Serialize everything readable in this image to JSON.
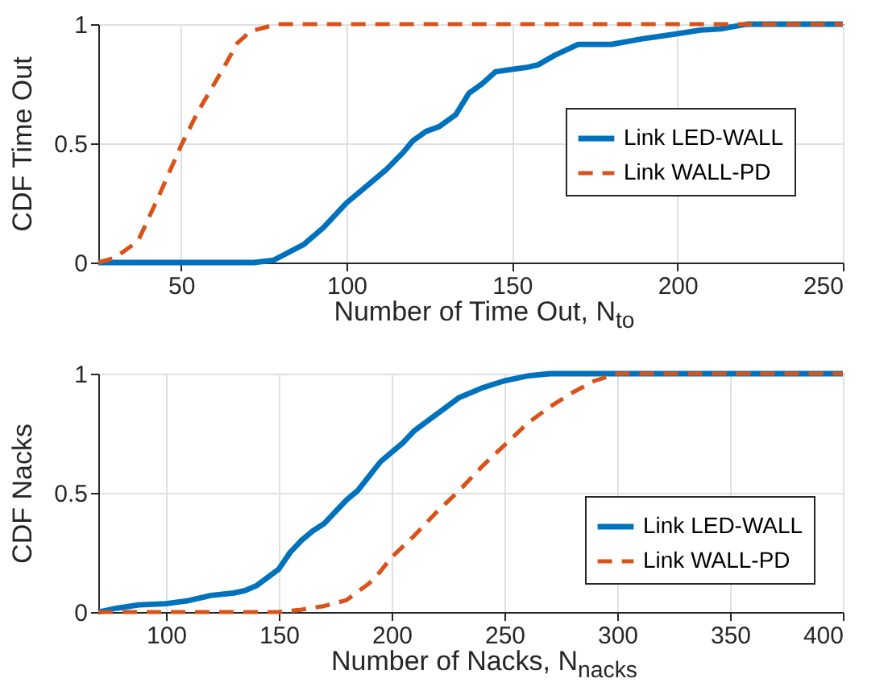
{
  "chart_data": [
    {
      "type": "line",
      "xlabel": "Number of Time Out, N$_{to}$",
      "ylabel": "CDF Time Out",
      "xlim": [
        25,
        250
      ],
      "ylim": [
        0,
        1
      ],
      "xticks": [
        50,
        100,
        150,
        200,
        250
      ],
      "yticks": [
        0,
        0.5,
        1
      ],
      "grid": true,
      "legend": "right",
      "series": [
        {
          "name": "Link LED-WALL",
          "color": "#0072bd",
          "line_style": "solid",
          "x": [
            25,
            72,
            78,
            87,
            93,
            100,
            106,
            112,
            117,
            120,
            124,
            128,
            133,
            137,
            141,
            145,
            150,
            155,
            158,
            163,
            170,
            180,
            190,
            200,
            207,
            213,
            221,
            250
          ],
          "values": [
            0,
            0,
            0.01,
            0.075,
            0.146,
            0.25,
            0.32,
            0.39,
            0.46,
            0.51,
            0.55,
            0.57,
            0.62,
            0.71,
            0.75,
            0.8,
            0.81,
            0.82,
            0.83,
            0.87,
            0.915,
            0.915,
            0.94,
            0.96,
            0.975,
            0.98,
            1,
            1
          ]
        },
        {
          "name": "Link WALL-PD",
          "color": "#d95319",
          "line_style": "dashed",
          "x": [
            25,
            30,
            37,
            43,
            50,
            55,
            63,
            67,
            71,
            79,
            250
          ],
          "values": [
            0,
            0.02,
            0.09,
            0.27,
            0.49,
            0.63,
            0.82,
            0.92,
            0.97,
            1,
            1
          ]
        }
      ]
    },
    {
      "type": "line",
      "xlabel": "Number of Nacks, N$_{nacks}$",
      "ylabel": "CDF Nacks",
      "xlim": [
        70,
        400
      ],
      "ylim": [
        0,
        1
      ],
      "xticks": [
        100,
        150,
        200,
        250,
        300,
        350,
        400
      ],
      "yticks": [
        0,
        0.5,
        1
      ],
      "grid": true,
      "legend": "bottom right",
      "series": [
        {
          "name": "Link LED-WALL",
          "color": "#0072bd",
          "line_style": "solid",
          "x": [
            70,
            78,
            88,
            100,
            110,
            120,
            130,
            135,
            140,
            150,
            155,
            160,
            165,
            170,
            175,
            180,
            185,
            190,
            195,
            200,
            205,
            210,
            220,
            230,
            240,
            250,
            260,
            270,
            400
          ],
          "values": [
            0,
            0.016,
            0.03,
            0.035,
            0.048,
            0.07,
            0.08,
            0.09,
            0.11,
            0.18,
            0.25,
            0.3,
            0.34,
            0.37,
            0.42,
            0.47,
            0.51,
            0.57,
            0.63,
            0.67,
            0.71,
            0.76,
            0.83,
            0.9,
            0.94,
            0.97,
            0.99,
            1,
            1
          ]
        },
        {
          "name": "Link WALL-PD",
          "color": "#d95319",
          "line_style": "dashed",
          "x": [
            70,
            150,
            160,
            170,
            180,
            190,
            195,
            200,
            210,
            220,
            230,
            240,
            250,
            260,
            270,
            280,
            290,
            300,
            400
          ],
          "values": [
            0,
            0,
            0.01,
            0.025,
            0.05,
            0.12,
            0.17,
            0.23,
            0.32,
            0.42,
            0.51,
            0.61,
            0.7,
            0.79,
            0.86,
            0.92,
            0.97,
            1,
            1
          ]
        }
      ]
    }
  ]
}
